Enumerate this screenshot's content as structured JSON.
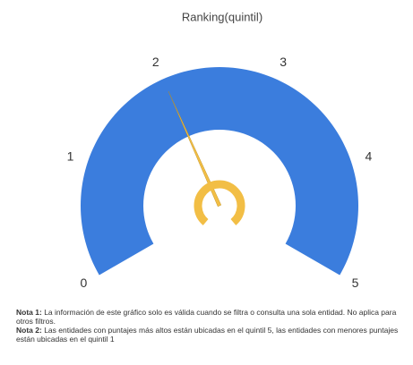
{
  "chart_data": {
    "type": "gauge",
    "title": "Ranking(quintil)",
    "min": 0,
    "max": 5,
    "ticks": [
      0,
      1,
      2,
      3,
      4,
      5
    ],
    "value": 2,
    "color": "#3b7ddd",
    "needle_color": "#f2be45"
  },
  "notes": [
    {
      "label": "Nota 1:",
      "text": "La información de este gráfico solo es válida cuando se filtra o consulta una sola entidad. No aplica para otros filtros."
    },
    {
      "label": "Nota 2:",
      "text": "Las entidades con puntajes más altos están ubicadas en el quintil 5, las entidades con menores puntajes están ubicadas en el quintil 1"
    }
  ]
}
